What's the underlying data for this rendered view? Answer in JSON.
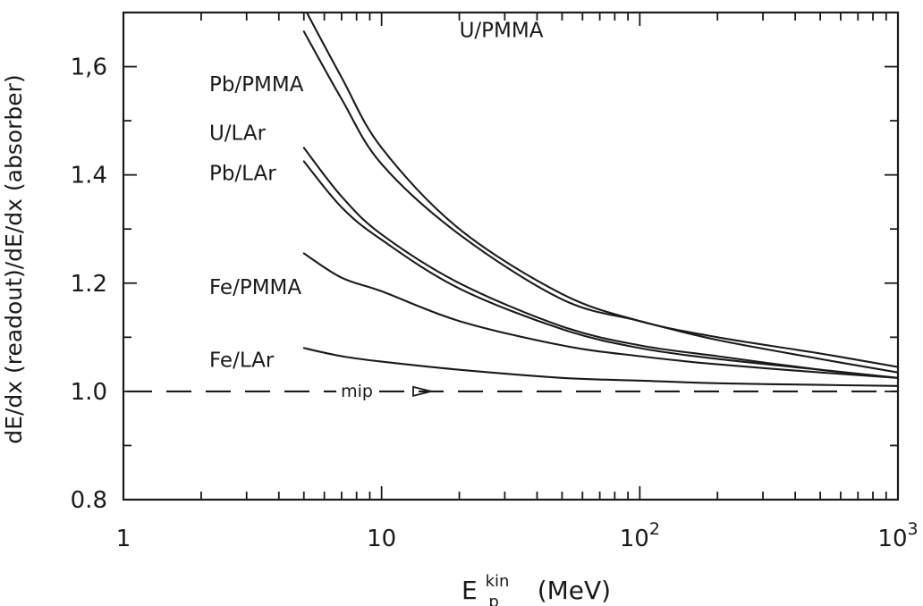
{
  "chart_data": {
    "type": "line",
    "title": "",
    "xlabel": {
      "main": "E",
      "sub": "p",
      "sup": "kin",
      "unit": "(MeV)"
    },
    "ylabel": "dE/dx (readout)/dE/dx (absorber)",
    "xscale": "log",
    "xlim": [
      1,
      1000
    ],
    "ylim": [
      0.8,
      1.7
    ],
    "grid": false,
    "x_ticks": [
      {
        "value": 1,
        "base": "1",
        "exp": ""
      },
      {
        "value": 10,
        "base": "10",
        "exp": ""
      },
      {
        "value": 100,
        "base": "10",
        "exp": "2"
      },
      {
        "value": 1000,
        "base": "10",
        "exp": "3"
      }
    ],
    "y_ticks": [
      {
        "value": 0.8,
        "label": "0.8"
      },
      {
        "value": 1.0,
        "label": "1.0"
      },
      {
        "value": 1.2,
        "label": "1.2"
      },
      {
        "value": 1.4,
        "label": "1.4"
      },
      {
        "value": 1.6,
        "label": "1,6"
      }
    ],
    "series": [
      {
        "name": "U/PMMA",
        "x": [
          5,
          7,
          10,
          20,
          50,
          100,
          200,
          500,
          1000
        ],
        "y": [
          1.71,
          1.58,
          1.45,
          1.3,
          1.18,
          1.13,
          1.1,
          1.07,
          1.045
        ]
      },
      {
        "name": "Pb/PMMA",
        "x": [
          5,
          7,
          10,
          20,
          50,
          100,
          200,
          500,
          1000
        ],
        "y": [
          1.665,
          1.54,
          1.42,
          1.29,
          1.17,
          1.13,
          1.095,
          1.06,
          1.035
        ]
      },
      {
        "name": "U/LAr",
        "x": [
          5,
          7,
          10,
          20,
          50,
          100,
          200,
          500,
          1000
        ],
        "y": [
          1.45,
          1.36,
          1.29,
          1.2,
          1.12,
          1.085,
          1.065,
          1.04,
          1.025
        ]
      },
      {
        "name": "Pb/LAr",
        "x": [
          5,
          7,
          10,
          20,
          50,
          100,
          200,
          500,
          1000
        ],
        "y": [
          1.425,
          1.34,
          1.28,
          1.19,
          1.115,
          1.08,
          1.06,
          1.04,
          1.025
        ]
      },
      {
        "name": "Fe/PMMA",
        "x": [
          5,
          7,
          10,
          20,
          50,
          100,
          200,
          500,
          1000
        ],
        "y": [
          1.255,
          1.21,
          1.185,
          1.13,
          1.085,
          1.065,
          1.05,
          1.035,
          1.025
        ]
      },
      {
        "name": "Fe/LAr",
        "x": [
          5,
          7,
          10,
          20,
          50,
          100,
          200,
          500,
          1000
        ],
        "y": [
          1.08,
          1.065,
          1.055,
          1.04,
          1.025,
          1.02,
          1.015,
          1.012,
          1.01
        ]
      }
    ],
    "mip": {
      "name": "mip",
      "y": 1.0
    },
    "series_labels": [
      {
        "series": "U/PMMA",
        "at_x": 20,
        "at_y": 1.655
      },
      {
        "series": "Pb/PMMA",
        "at_x": 2.15,
        "at_y": 1.555
      },
      {
        "series": "U/LAr",
        "at_x": 2.15,
        "at_y": 1.465
      },
      {
        "series": "Pb/LAr",
        "at_x": 2.15,
        "at_y": 1.39
      },
      {
        "series": "Fe/PMMA",
        "at_x": 2.15,
        "at_y": 1.18
      },
      {
        "series": "Fe/LAr",
        "at_x": 2.15,
        "at_y": 1.045
      }
    ]
  }
}
